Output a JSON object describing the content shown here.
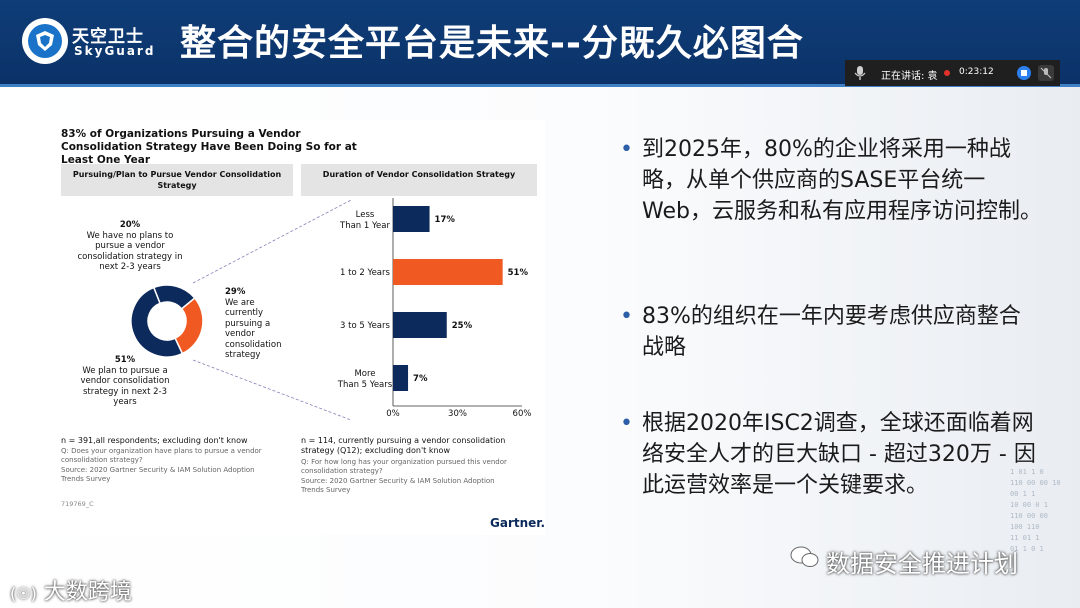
{
  "header": {
    "logo_cn": "天空卫士",
    "logo_en": "SkyGuard",
    "title": "整合的安全平台是未来--分既久必图合"
  },
  "meeting_bar": {
    "speaking_label": "正在讲话: 袁",
    "timer": "0:23:12"
  },
  "figure": {
    "title": "83% of Organizations Pursuing a Vendor Consolidation Strategy Have Been Doing So for at Least One Year",
    "left_panel_header": "Pursuing/Plan to Pursue Vendor Consolidation Strategy",
    "right_panel_header": "Duration of Vendor Consolidation Strategy",
    "ann_no_plans_pct": "20%",
    "ann_no_plans_text": "We have no plans to pursue a vendor consolidation strategy in next 2-3 years",
    "ann_current_pct": "29%",
    "ann_current_text": "We are currently pursuing a vendor consolidation strategy",
    "ann_plan_pct": "51%",
    "ann_plan_text": "We plan to pursue a vendor consolidation strategy in next 2-3 years",
    "left_n": "n = 391,all respondents; excluding don't know",
    "left_q": "Q: Does your organization have plans to pursue a vendor consolidation strategy?",
    "left_source": "Source: 2020 Gartner Security & IAM Solution Adoption Trends Survey",
    "right_n": "n = 114, currently pursuing a vendor consolidation strategy (Q12); excluding don't know",
    "right_q": "Q: For how long has your organization pursued this vendor consolidation strategy?",
    "right_source": "Source: 2020 Gartner Security & IAM Solution Adoption Trends Survey",
    "figure_id": "719769_C",
    "brand": "Gartner."
  },
  "chart_data": [
    {
      "type": "pie",
      "categories": [
        "We have no plans to pursue a vendor consolidation strategy in next 2-3 years",
        "We are currently pursuing a vendor consolidation strategy",
        "We plan to pursue a vendor consolidation strategy in next 2-3 years"
      ],
      "values": [
        20,
        29,
        51
      ],
      "colors": [
        "#0d2a5c",
        "#f05a22",
        "#0d2a5c"
      ],
      "title": "Pursuing/Plan to Pursue Vendor Consolidation Strategy"
    },
    {
      "type": "bar",
      "orientation": "horizontal",
      "categories": [
        "Less Than 1 Year",
        "1 to 2 Years",
        "3 to 5 Years",
        "More Than 5 Years"
      ],
      "values": [
        17,
        51,
        25,
        7
      ],
      "value_labels": [
        "17%",
        "51%",
        "25%",
        "7%"
      ],
      "colors": [
        "#0d2a5c",
        "#f05a22",
        "#0d2a5c",
        "#0d2a5c"
      ],
      "title": "Duration of Vendor Consolidation Strategy",
      "xlim": [
        0,
        60
      ],
      "x_ticks": [
        "0%",
        "30%",
        "60%"
      ]
    }
  ],
  "bullets": [
    "到2025年，80%的企业将采用一种战略，从单个供应商的SASE平台统一Web，云服务和私有应用程序访问控制。",
    "83%的组织在一年内要考虑供应商整合战略",
    "根据2020年ISC2调查，全球还面临着网络安全人才的巨大缺口 - 超过320万 - 因此运营效率是一个关键要求。"
  ],
  "bullet_symbol": "•",
  "watermark": "数据安全推进计划",
  "bottom_left": "大数跨境",
  "binary_text": "1 01 1 0\n110 00 00 10\n00 1 1\n10 00 0 1\n110 00 00\n100 110\n11 01 1\n01 1 0 1"
}
